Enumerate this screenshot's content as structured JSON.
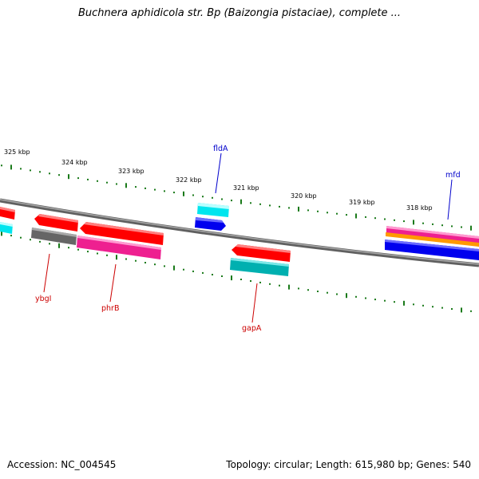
{
  "title": "Buchnera aphidicola str. Bp (Baizongia pistaciae), complete ...",
  "footer": {
    "accession": "Accession: NC_004545",
    "summary": "Topology: circular; Length: 615,980 bp; Genes: 540"
  },
  "colors": {
    "backbone": "#808080",
    "tick": "#1a7a1a",
    "label_forward": "#0000cc",
    "label_reverse": "#cc0000",
    "red": "#ff0000",
    "cyan": "#00e5ee",
    "blue": "#0000ee",
    "gray": "#666666",
    "magenta": "#ee2090",
    "teal": "#00b0b0",
    "orange": "#ff9900"
  },
  "ticks": [
    {
      "label": "325 kbp"
    },
    {
      "label": "324 kbp"
    },
    {
      "label": "323 kbp"
    },
    {
      "label": "322 kbp"
    },
    {
      "label": "321 kbp"
    },
    {
      "label": "320 kbp"
    },
    {
      "label": "319 kbp"
    },
    {
      "label": "318 kbp"
    }
  ],
  "gene_labels": [
    {
      "name": "fldA",
      "strand": "forward"
    },
    {
      "name": "mfd",
      "strand": "forward"
    },
    {
      "name": "ybgI",
      "strand": "reverse"
    },
    {
      "name": "phrB",
      "strand": "reverse"
    },
    {
      "name": "gapA",
      "strand": "reverse"
    }
  ]
}
